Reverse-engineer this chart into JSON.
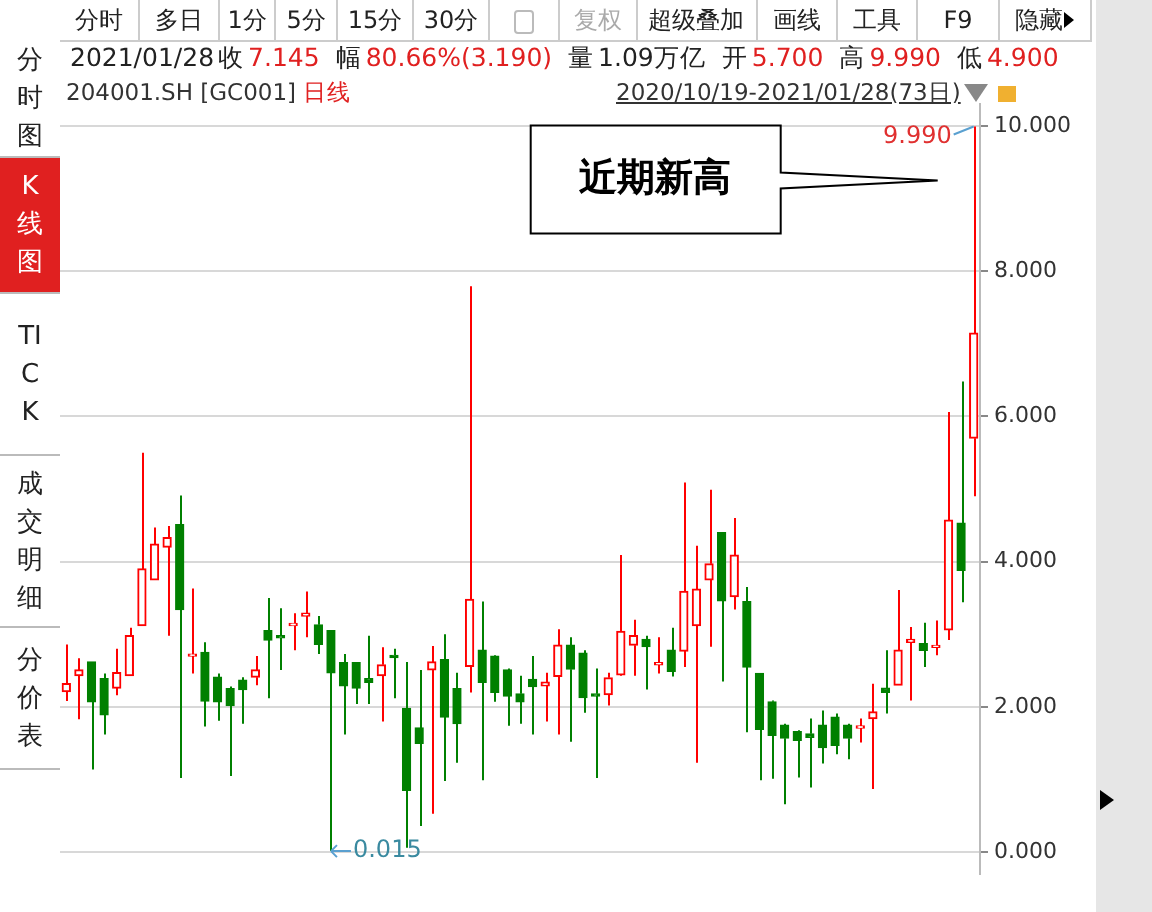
{
  "chart_data": {
    "type": "candlestick",
    "title": "204001.SH [GC001]",
    "subtitle": "2020/10/19-2021/01/28(73日)",
    "categories": [
      null,
      null,
      null,
      null,
      null,
      null,
      null,
      null,
      null,
      null,
      null,
      null,
      null,
      null,
      null,
      null,
      null,
      null,
      null,
      null,
      null,
      null,
      null,
      null,
      null,
      null,
      null,
      null,
      null,
      null,
      null,
      null,
      null,
      null,
      null,
      null,
      null,
      null,
      null,
      null,
      null,
      null,
      null,
      null,
      null,
      null,
      null,
      null,
      null,
      null,
      null,
      null,
      null,
      null,
      null,
      null,
      null,
      null,
      null,
      null,
      null,
      null,
      null,
      null,
      null,
      null,
      null,
      null,
      null,
      null,
      null,
      null,
      null
    ],
    "ohlc": [
      [
        2.21,
        2.86,
        2.08,
        2.32
      ],
      [
        2.43,
        2.67,
        1.83,
        2.51
      ],
      [
        2.62,
        2.62,
        1.14,
        2.07
      ],
      [
        2.39,
        2.46,
        1.62,
        1.89
      ],
      [
        2.26,
        2.8,
        2.16,
        2.47
      ],
      [
        2.43,
        3.09,
        2.43,
        2.98
      ],
      [
        3.12,
        5.5,
        3.12,
        3.9
      ],
      [
        3.75,
        4.47,
        3.75,
        4.24
      ],
      [
        4.2,
        4.49,
        2.98,
        4.33
      ],
      [
        4.51,
        4.91,
        1.02,
        3.34
      ],
      [
        2.7,
        3.63,
        2.46,
        2.71
      ],
      [
        2.75,
        2.89,
        1.73,
        2.08
      ],
      [
        2.41,
        2.46,
        1.81,
        2.07
      ],
      [
        2.25,
        2.28,
        1.05,
        2.02
      ],
      [
        2.37,
        2.41,
        1.77,
        2.24
      ],
      [
        2.41,
        2.7,
        2.3,
        2.51
      ],
      [
        3.05,
        3.5,
        2.12,
        2.92
      ],
      [
        2.98,
        3.36,
        2.51,
        2.95
      ],
      [
        3.12,
        3.29,
        2.78,
        3.15
      ],
      [
        3.25,
        3.59,
        2.96,
        3.29
      ],
      [
        3.13,
        3.25,
        2.73,
        2.86
      ],
      [
        3.05,
        3.05,
        0.015,
        2.47
      ],
      [
        2.61,
        2.73,
        1.62,
        2.29
      ],
      [
        2.61,
        2.61,
        2.04,
        2.26
      ],
      [
        2.39,
        2.98,
        2.04,
        2.34
      ],
      [
        2.43,
        2.82,
        1.8,
        2.58
      ],
      [
        2.71,
        2.8,
        2.12,
        2.68
      ],
      [
        1.98,
        2.62,
        0.06,
        0.85
      ],
      [
        1.71,
        2.51,
        0.36,
        1.5
      ],
      [
        2.51,
        2.84,
        0.53,
        2.62
      ],
      [
        2.65,
        3.0,
        0.98,
        1.86
      ],
      [
        2.25,
        2.47,
        1.23,
        1.77
      ],
      [
        2.56,
        7.79,
        2.2,
        3.48
      ],
      [
        2.78,
        3.45,
        0.99,
        2.34
      ],
      [
        2.7,
        2.71,
        2.07,
        2.2
      ],
      [
        2.51,
        2.53,
        1.74,
        2.15
      ],
      [
        2.18,
        2.43,
        1.77,
        2.07
      ],
      [
        2.38,
        2.7,
        1.62,
        2.28
      ],
      [
        2.29,
        2.47,
        1.8,
        2.34
      ],
      [
        2.42,
        3.07,
        1.62,
        2.85
      ],
      [
        2.85,
        2.96,
        1.52,
        2.52
      ],
      [
        2.74,
        2.78,
        1.92,
        2.13
      ],
      [
        2.18,
        2.53,
        1.02,
        2.15
      ],
      [
        2.17,
        2.47,
        2.02,
        2.4
      ],
      [
        2.44,
        4.09,
        2.43,
        3.04
      ],
      [
        2.85,
        3.2,
        2.43,
        2.98
      ],
      [
        2.93,
        2.98,
        2.24,
        2.83
      ],
      [
        2.58,
        2.96,
        2.46,
        2.61
      ],
      [
        2.78,
        3.09,
        2.42,
        2.49
      ],
      [
        2.77,
        5.09,
        2.55,
        3.59
      ],
      [
        3.12,
        4.22,
        1.23,
        3.62
      ],
      [
        3.75,
        4.99,
        2.83,
        3.97
      ],
      [
        4.4,
        4.4,
        2.35,
        3.46
      ],
      [
        3.52,
        4.6,
        3.34,
        4.09
      ],
      [
        3.45,
        3.65,
        1.65,
        2.55
      ],
      [
        2.46,
        2.46,
        0.99,
        1.69
      ],
      [
        2.07,
        2.09,
        1.01,
        1.61
      ],
      [
        1.75,
        1.77,
        0.66,
        1.57
      ],
      [
        1.66,
        1.68,
        1.03,
        1.54
      ],
      [
        1.63,
        1.84,
        0.89,
        1.58
      ],
      [
        1.75,
        1.95,
        1.22,
        1.44
      ],
      [
        1.86,
        1.91,
        1.35,
        1.47
      ],
      [
        1.75,
        1.77,
        1.28,
        1.57
      ],
      [
        1.71,
        1.84,
        1.51,
        1.73
      ],
      [
        1.84,
        2.32,
        0.87,
        1.93
      ],
      [
        2.26,
        2.78,
        1.91,
        2.2
      ],
      [
        2.3,
        3.61,
        2.3,
        2.78
      ],
      [
        2.89,
        3.1,
        2.09,
        2.93
      ],
      [
        2.87,
        3.16,
        2.55,
        2.78
      ],
      [
        2.82,
        3.19,
        2.71,
        2.84
      ],
      [
        3.06,
        6.06,
        2.92,
        4.57
      ],
      [
        4.53,
        6.48,
        3.44,
        3.88
      ],
      [
        5.7,
        9.99,
        4.9,
        7.145
      ]
    ],
    "colors": [
      "#ff0000",
      "#ff0000",
      "#008000",
      "#008000",
      "#ff0000",
      "#ff0000",
      "#ff0000",
      "#ff0000",
      "#ff0000",
      "#008000",
      "#ff0000",
      "#008000",
      "#008000",
      "#008000",
      "#008000",
      "#ff0000",
      "#008000",
      "#008000",
      "#ff0000",
      "#ff0000",
      "#008000",
      "#008000",
      "#008000",
      "#008000",
      "#008000",
      "#ff0000",
      "#008000",
      "#008000",
      "#008000",
      "#ff0000",
      "#008000",
      "#008000",
      "#ff0000",
      "#008000",
      "#008000",
      "#008000",
      "#008000",
      "#008000",
      "#ff0000",
      "#ff0000",
      "#008000",
      "#008000",
      "#008000",
      "#ff0000",
      "#ff0000",
      "#ff0000",
      "#008000",
      "#ff0000",
      "#008000",
      "#ff0000",
      "#ff0000",
      "#ff0000",
      "#008000",
      "#ff0000",
      "#008000",
      "#008000",
      "#008000",
      "#008000",
      "#008000",
      "#008000",
      "#008000",
      "#008000",
      "#008000",
      "#ff0000",
      "#ff0000",
      "#008000",
      "#ff0000",
      "#ff0000",
      "#008000",
      "#ff0000",
      "#ff0000",
      "#008000",
      "#ff0000"
    ],
    "ylim": [
      -0.3,
      10.3
    ],
    "yticks": [
      {
        "value": 0,
        "label": "0.000"
      },
      {
        "value": 2,
        "label": "2.000"
      },
      {
        "value": 4,
        "label": "4.000"
      },
      {
        "value": 6,
        "label": "6.000"
      },
      {
        "value": 8,
        "label": "8.000"
      },
      {
        "value": 10,
        "label": "10.000"
      }
    ],
    "grid": "y",
    "tick_labels": "y",
    "annotations": [
      "分时",
      "多日",
      "1分",
      "5分",
      "15分",
      "30分",
      "复权",
      "超级叠加",
      "画线",
      "工具",
      "F9",
      "隐藏",
      "分时图",
      "K线图",
      "TICK",
      "成交明细",
      "分价表",
      "2021/01/28",
      "收",
      "7.145",
      "幅",
      "80.66%(3.190)",
      "量",
      "1.09万亿",
      "开",
      "5.700",
      "高",
      "9.990",
      "低",
      "4.900",
      "日线",
      "近期新高",
      "9.990",
      "0.015"
    ]
  }
}
